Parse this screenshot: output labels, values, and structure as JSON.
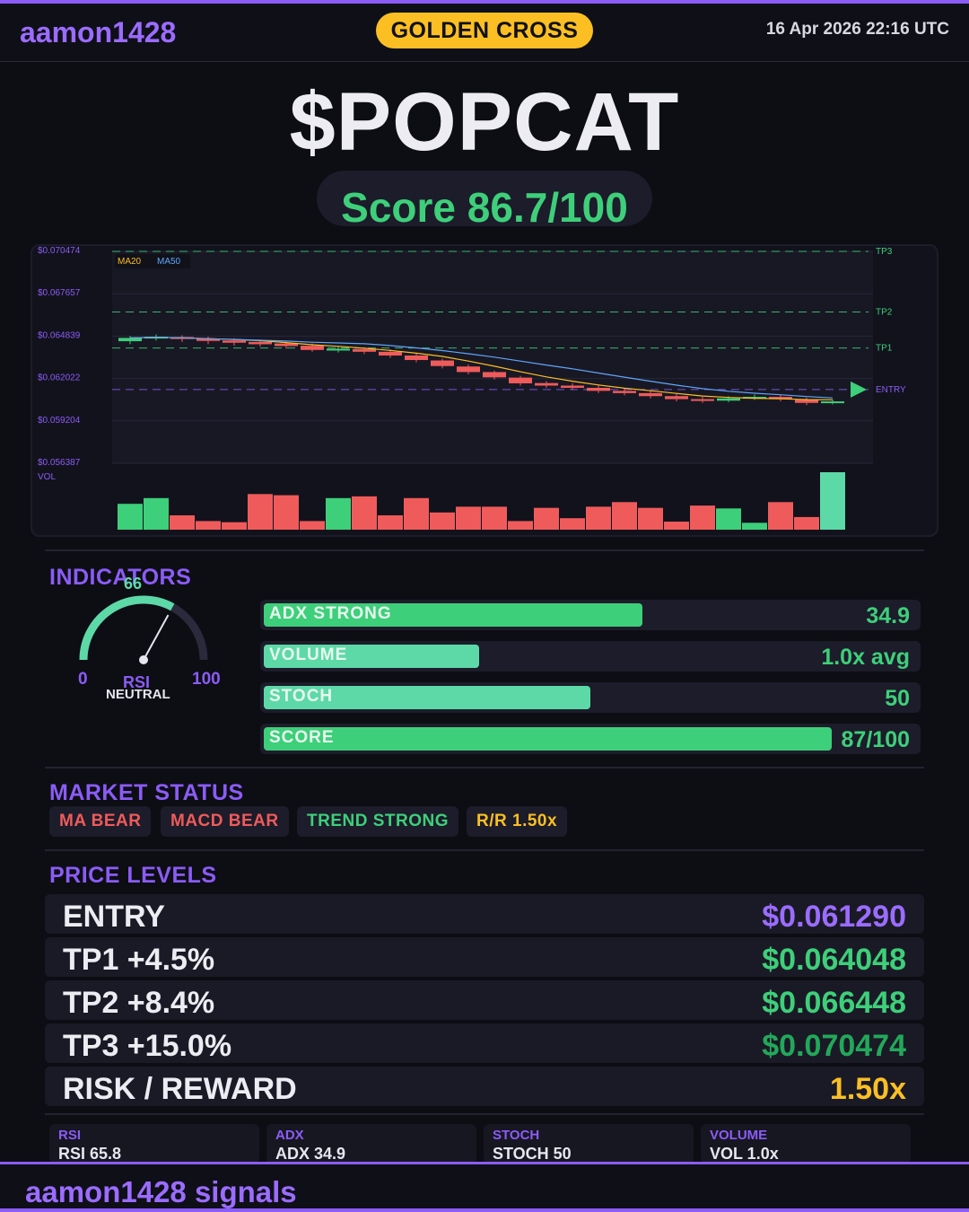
{
  "header": {
    "brand": "aamon1428",
    "signal": "GOLDEN CROSS",
    "timestamp": "16 Apr 2026  22:16 UTC"
  },
  "ticker": "$POPCAT",
  "score": {
    "label": "Score 86.7/100",
    "value": 86.7,
    "max": 100
  },
  "chart_data": {
    "type": "candlestick",
    "y_tick_labels": [
      "$0.070474",
      "$0.067657",
      "$0.064839",
      "$0.062022",
      "$0.059204",
      "$0.056387"
    ],
    "ylim": [
      0.056387,
      0.070474
    ],
    "legend": [
      "MA20",
      "MA50"
    ],
    "volume_label": "VOL",
    "levels": [
      {
        "name": "TP3",
        "price": 0.070474,
        "color": "#3ecf7a"
      },
      {
        "name": "TP2",
        "price": 0.066448,
        "color": "#3ecf7a"
      },
      {
        "name": "TP1",
        "price": 0.064048,
        "color": "#3ecf7a"
      },
      {
        "name": "ENTRY",
        "price": 0.06129,
        "color": "#8b5cf6"
      }
    ],
    "candles": [
      {
        "o": 0.0645,
        "c": 0.06472,
        "h": 0.06485,
        "l": 0.0643,
        "v": 0.45
      },
      {
        "o": 0.0647,
        "c": 0.0648,
        "h": 0.06495,
        "l": 0.06455,
        "v": 0.55
      },
      {
        "o": 0.06478,
        "c": 0.06465,
        "h": 0.0649,
        "l": 0.06445,
        "v": 0.25
      },
      {
        "o": 0.06468,
        "c": 0.06452,
        "h": 0.0648,
        "l": 0.0643,
        "v": 0.15
      },
      {
        "o": 0.06455,
        "c": 0.0644,
        "h": 0.0647,
        "l": 0.0642,
        "v": 0.13
      },
      {
        "o": 0.06445,
        "c": 0.0643,
        "h": 0.0646,
        "l": 0.06415,
        "v": 0.62
      },
      {
        "o": 0.06435,
        "c": 0.06418,
        "h": 0.0645,
        "l": 0.064,
        "v": 0.6
      },
      {
        "o": 0.0642,
        "c": 0.06392,
        "h": 0.06435,
        "l": 0.0638,
        "v": 0.15
      },
      {
        "o": 0.0639,
        "c": 0.064,
        "h": 0.06415,
        "l": 0.06375,
        "v": 0.55
      },
      {
        "o": 0.06398,
        "c": 0.0638,
        "h": 0.0641,
        "l": 0.06365,
        "v": 0.58
      },
      {
        "o": 0.0638,
        "c": 0.06355,
        "h": 0.06395,
        "l": 0.0634,
        "v": 0.25
      },
      {
        "o": 0.06355,
        "c": 0.06325,
        "h": 0.0637,
        "l": 0.0631,
        "v": 0.55
      },
      {
        "o": 0.06322,
        "c": 0.06285,
        "h": 0.06335,
        "l": 0.0627,
        "v": 0.3
      },
      {
        "o": 0.06282,
        "c": 0.06245,
        "h": 0.06295,
        "l": 0.0623,
        "v": 0.4
      },
      {
        "o": 0.06245,
        "c": 0.0621,
        "h": 0.06255,
        "l": 0.06195,
        "v": 0.4
      },
      {
        "o": 0.06208,
        "c": 0.0617,
        "h": 0.0622,
        "l": 0.06155,
        "v": 0.15
      },
      {
        "o": 0.06172,
        "c": 0.06155,
        "h": 0.06185,
        "l": 0.0614,
        "v": 0.38
      },
      {
        "o": 0.06155,
        "c": 0.0614,
        "h": 0.0617,
        "l": 0.06125,
        "v": 0.2
      },
      {
        "o": 0.0614,
        "c": 0.0612,
        "h": 0.06155,
        "l": 0.06105,
        "v": 0.4
      },
      {
        "o": 0.0612,
        "c": 0.06105,
        "h": 0.06135,
        "l": 0.0609,
        "v": 0.48
      },
      {
        "o": 0.06105,
        "c": 0.06085,
        "h": 0.0612,
        "l": 0.0607,
        "v": 0.38
      },
      {
        "o": 0.06085,
        "c": 0.06065,
        "h": 0.061,
        "l": 0.0605,
        "v": 0.14
      },
      {
        "o": 0.06065,
        "c": 0.06055,
        "h": 0.0608,
        "l": 0.0604,
        "v": 0.42
      },
      {
        "o": 0.06055,
        "c": 0.0607,
        "h": 0.06085,
        "l": 0.06045,
        "v": 0.37
      },
      {
        "o": 0.06068,
        "c": 0.0608,
        "h": 0.06095,
        "l": 0.0606,
        "v": 0.12
      },
      {
        "o": 0.0608,
        "c": 0.06065,
        "h": 0.06092,
        "l": 0.0605,
        "v": 0.48
      },
      {
        "o": 0.06062,
        "c": 0.0604,
        "h": 0.06075,
        "l": 0.06025,
        "v": 0.22
      },
      {
        "o": 0.0604,
        "c": 0.0605,
        "h": 0.06062,
        "l": 0.0603,
        "v": 1.0
      }
    ]
  },
  "indicators": {
    "title": "INDICATORS",
    "rsi_gauge": {
      "value": 66,
      "value_label": "66",
      "min_label": "0",
      "max_label": "100",
      "name": "RSI",
      "state": "NEUTRAL"
    },
    "bars": [
      {
        "label": "ADX  STRONG",
        "value_text": "34.9",
        "fill": 0.58,
        "color": "#3ecf7a"
      },
      {
        "label": "VOLUME",
        "value_text": "1.0x avg",
        "fill": 0.33,
        "color": "#5dd9a8"
      },
      {
        "label": "STOCH",
        "value_text": "50",
        "fill": 0.5,
        "color": "#5dd9a8"
      },
      {
        "label": "SCORE",
        "value_text": "87/100",
        "fill": 0.87,
        "color": "#3ecf7a"
      }
    ]
  },
  "market_status": {
    "title": "MARKET STATUS",
    "chips": [
      {
        "label": "MA BEAR",
        "color": "#ef5b5b"
      },
      {
        "label": "MACD BEAR",
        "color": "#ef5b5b"
      },
      {
        "label": "TREND STRONG",
        "color": "#3ecf7a"
      },
      {
        "label": "R/R  1.50x",
        "color": "#fbbf24"
      }
    ]
  },
  "price_levels": {
    "title": "PRICE LEVELS",
    "rows": [
      {
        "label": "ENTRY",
        "value": "$0.061290",
        "color": "#9b6cff"
      },
      {
        "label": "TP1  +4.5%",
        "value": "$0.064048",
        "color": "#3ecf7a"
      },
      {
        "label": "TP2  +8.4%",
        "value": "$0.066448",
        "color": "#3ecf7a"
      },
      {
        "label": "TP3  +15.0%",
        "value": "$0.070474",
        "color": "#22a85a"
      },
      {
        "label": "RISK / REWARD",
        "value": "1.50x",
        "color": "#fbbf24"
      }
    ]
  },
  "summary": [
    {
      "title": "RSI",
      "value": "RSI 65.8"
    },
    {
      "title": "ADX",
      "value": "ADX 34.9"
    },
    {
      "title": "STOCH",
      "value": "STOCH 50"
    },
    {
      "title": "VOLUME",
      "value": "VOL 1.0x"
    }
  ],
  "footer": {
    "text": "aamon1428 signals"
  }
}
